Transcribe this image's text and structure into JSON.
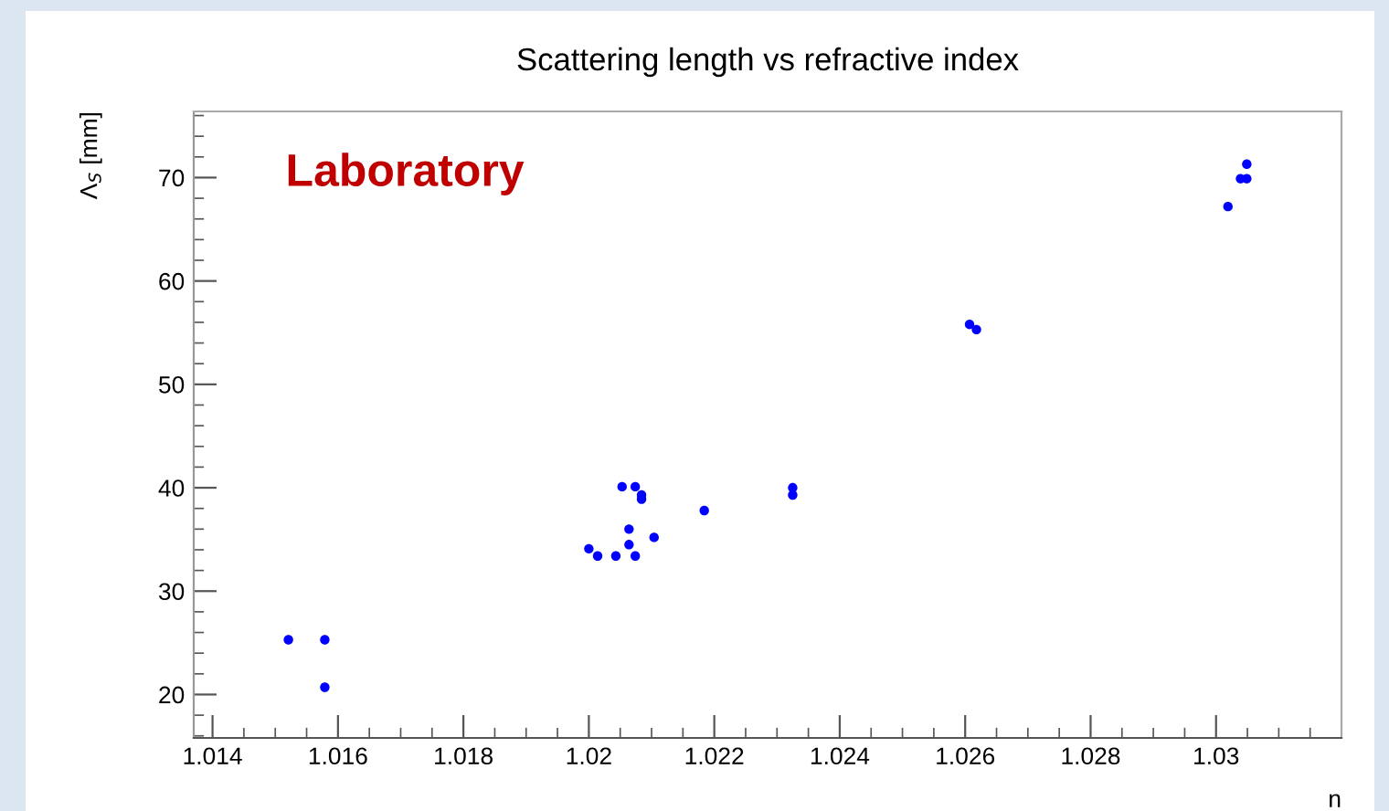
{
  "chart_data": {
    "type": "scatter",
    "title": "Scattering length vs refractive index",
    "xlabel": "n",
    "ylabel": "Λ$_{S}$ [mm]",
    "annotations": [
      "Laboratory"
    ],
    "series": [
      {
        "color": "#0000ff",
        "x": [
          1.01521,
          1.01579,
          1.01579,
          1.02,
          1.02014,
          1.02043,
          1.02053,
          1.02074,
          1.02084,
          1.02084,
          1.02064,
          1.02064,
          1.02074,
          1.02104,
          1.02184,
          1.02325,
          1.02325,
          1.02607,
          1.02618,
          1.03019,
          1.03039,
          1.03049,
          1.03049
        ],
        "values": [
          25.3,
          25.3,
          20.7,
          34.1,
          33.4,
          33.4,
          40.1,
          40.1,
          39.3,
          38.9,
          36.0,
          34.5,
          33.4,
          35.2,
          37.8,
          40.0,
          39.3,
          55.8,
          55.3,
          67.2,
          69.9,
          69.9,
          71.3
        ]
      }
    ],
    "xlim": [
      1.0137,
      1.032
    ],
    "ylim": [
      15.8,
      76.4
    ],
    "xticks": [
      1.014,
      1.016,
      1.018,
      1.02,
      1.022,
      1.024,
      1.026,
      1.028,
      1.03
    ],
    "yticks": [
      20,
      30,
      40,
      50,
      60,
      70
    ],
    "marker": "circle",
    "grid": false,
    "legend": false
  }
}
